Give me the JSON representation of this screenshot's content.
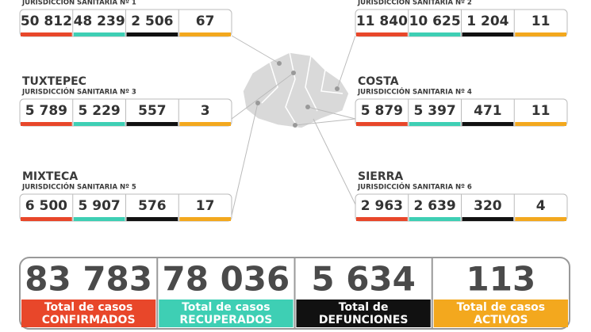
{
  "regions": [
    {
      "subtitle": "JURISDICCIÓN SANITARIA Nº 1",
      "values": [
        "50 812",
        "48 239",
        "2 506",
        "67"
      ]
    },
    {
      "subtitle": "JURISDICCIÓN SANITARIA Nº 2",
      "values": [
        "11 840",
        "10 625",
        "1 204",
        "11"
      ]
    },
    {
      "name": "TUXTEPEC",
      "subtitle": "JURISDICCIÓN SANITARIA Nº 3",
      "values": [
        "5 789",
        "5 229",
        "557",
        "3"
      ]
    },
    {
      "name": "COSTA",
      "subtitle": "JURISDICCIÓN SANITARIA Nº 4",
      "values": [
        "5 879",
        "5 397",
        "471",
        "11"
      ]
    },
    {
      "name": "MIXTECA",
      "subtitle": "JURISDICCIÓN SANITARIA Nº 5",
      "values": [
        "6 500",
        "5 907",
        "576",
        "17"
      ]
    },
    {
      "name": "SIERRA",
      "subtitle": "JURISDICCIÓN SANITARIA Nº 6",
      "values": [
        "2 963",
        "2 639",
        "320",
        "4"
      ]
    }
  ],
  "totals": [
    {
      "value": "83 783",
      "label_top": "Total de casos",
      "label_bottom": "CONFIRMADOS"
    },
    {
      "value": "78 036",
      "label_top": "Total de casos",
      "label_bottom": "RECUPERADOS"
    },
    {
      "value": "5 634",
      "label_top": "Total de",
      "label_bottom": "DEFUNCIONES"
    },
    {
      "value": "113",
      "label_top": "Total de casos",
      "label_bottom": "ACTIVOS"
    }
  ]
}
